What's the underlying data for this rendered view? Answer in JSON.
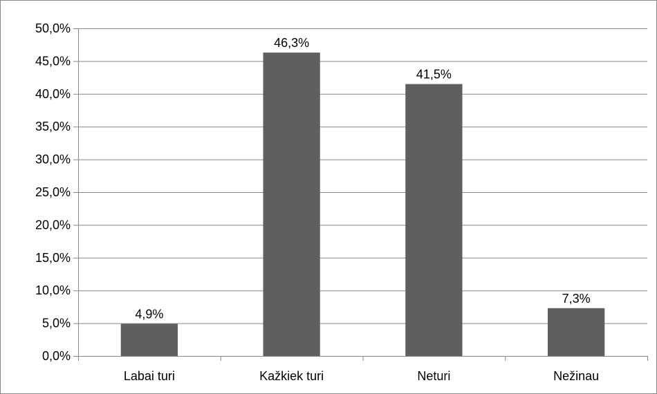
{
  "chart_data": {
    "type": "bar",
    "categories": [
      "Labai turi",
      "Kažkiek turi",
      "Neturi",
      "Nežinau"
    ],
    "values": [
      4.9,
      46.3,
      41.5,
      7.3
    ],
    "data_labels": [
      "4,9%",
      "46,3%",
      "41,5%",
      "7,3%"
    ],
    "ylim": [
      0,
      50
    ],
    "yticks": [
      0,
      5,
      10,
      15,
      20,
      25,
      30,
      35,
      40,
      45,
      50
    ],
    "ytick_labels": [
      "0,0%",
      "5,0%",
      "10,0%",
      "15,0%",
      "20,0%",
      "25,0%",
      "30,0%",
      "35,0%",
      "40,0%",
      "45,0%",
      "50,0%"
    ],
    "title": "",
    "xlabel": "",
    "ylabel": "",
    "grid": "horizontal",
    "legend": "none",
    "bar_color": "#5f5f5f",
    "grid_color": "#868686"
  }
}
